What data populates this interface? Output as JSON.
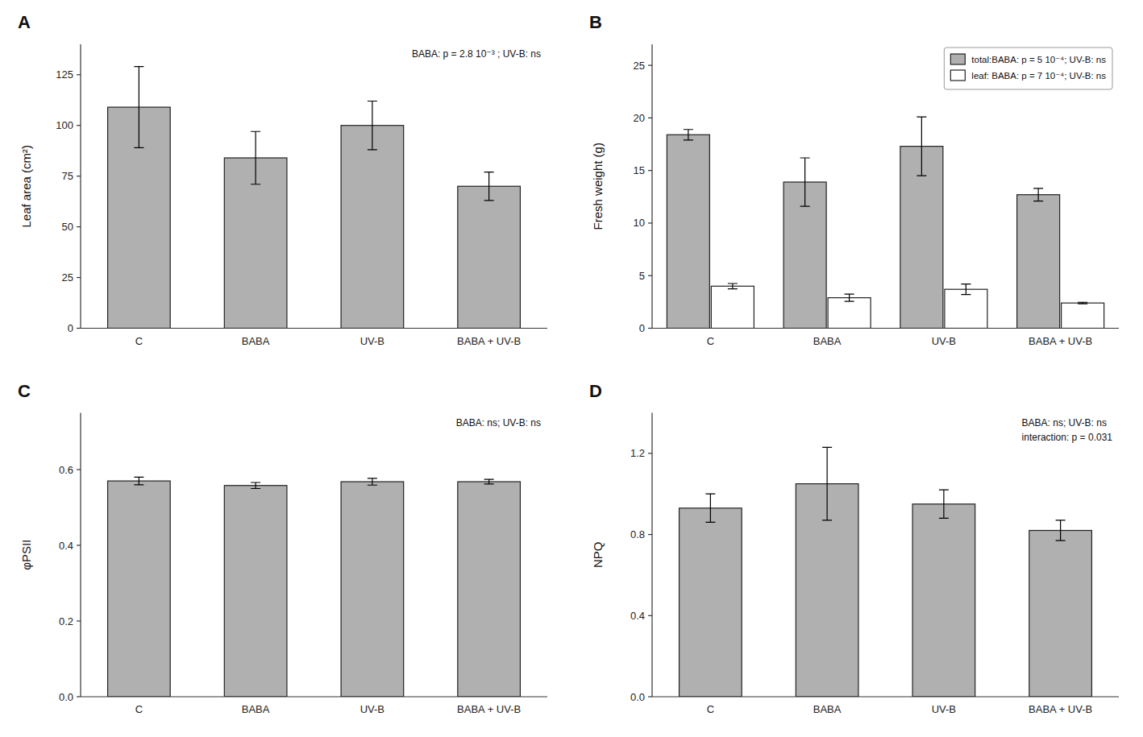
{
  "chart_data": [
    {
      "type": "bar",
      "title": "A",
      "ylabel": "Leaf area (cm²)",
      "categories": [
        "C",
        "BABA",
        "UV-B",
        "BABA + UV-B"
      ],
      "values": [
        109,
        84,
        100,
        70
      ],
      "errors": [
        20,
        13,
        12,
        7
      ],
      "color": "#b0b0b0",
      "ylim": [
        0,
        140
      ],
      "yticks": [
        0,
        25,
        50,
        75,
        100,
        125
      ],
      "annotation": "BABA: p = 2.8 10⁻³ ; UV-B: ns",
      "grid": false
    },
    {
      "type": "bar",
      "title": "B",
      "ylabel": "Fresh weight (g)",
      "categories": [
        "C",
        "BABA",
        "UV-B",
        "BABA + UV-B"
      ],
      "series": [
        {
          "name": "total:BABA: p = 5 10⁻⁴; UV-B: ns",
          "color": "#b0b0b0",
          "values": [
            18.4,
            13.9,
            17.3,
            12.7
          ],
          "errors": [
            0.5,
            2.3,
            2.8,
            0.6
          ]
        },
        {
          "name": "leaf: BABA: p = 7 10⁻⁴; UV-B: ns",
          "color": "#ffffff",
          "values": [
            4.0,
            2.9,
            3.7,
            2.4
          ],
          "errors": [
            0.25,
            0.35,
            0.5,
            0.07
          ]
        }
      ],
      "ylim": [
        0,
        27
      ],
      "yticks": [
        0,
        5,
        10,
        15,
        20,
        25
      ],
      "legend": "upper-right",
      "grid": false
    },
    {
      "type": "bar",
      "title": "C",
      "ylabel": "φPSII",
      "categories": [
        "C",
        "BABA",
        "UV-B",
        "BABA + UV-B"
      ],
      "values": [
        0.57,
        0.558,
        0.568,
        0.568
      ],
      "errors": [
        0.01,
        0.008,
        0.009,
        0.006
      ],
      "color": "#b0b0b0",
      "ylim": [
        0,
        0.75
      ],
      "yticks": [
        {
          "value": 0,
          "label": "0.0"
        },
        0.2,
        0.4,
        0.6
      ],
      "annotation": "BABA: ns; UV-B: ns",
      "grid": false
    },
    {
      "type": "bar",
      "title": "D",
      "ylabel": "NPQ",
      "categories": [
        "C",
        "BABA",
        "UV-B",
        "BABA + UV-B"
      ],
      "values": [
        0.93,
        1.05,
        0.95,
        0.82
      ],
      "errors": [
        0.07,
        0.18,
        0.07,
        0.05
      ],
      "color": "#b0b0b0",
      "ylim": [
        0,
        1.4
      ],
      "yticks": [
        {
          "value": 0,
          "label": "0.0"
        },
        0.4,
        0.8,
        1.2
      ],
      "annotation": [
        "BABA: ns; UV-B: ns",
        "interaction: p = 0.031"
      ],
      "grid": false
    }
  ]
}
